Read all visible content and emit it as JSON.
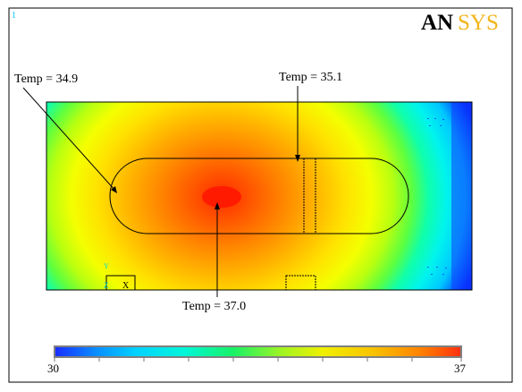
{
  "window": {
    "number": "1"
  },
  "logo": {
    "text": "ANSYS",
    "colors": {
      "an": "#000000",
      "sys": "#f2b51a"
    }
  },
  "annotations": [
    {
      "label": "Temp = 34.9"
    },
    {
      "label": "Temp = 35.1"
    },
    {
      "label": "Temp = 37.0"
    }
  ],
  "triad": {
    "y_label": "Y",
    "z_label": "Z",
    "x_label": "X"
  },
  "legend": {
    "min_label": "30",
    "max_label": "37",
    "min_value": 30,
    "max_value": 37,
    "colors": [
      "#0b16ff",
      "#00c8ff",
      "#00f2d0",
      "#16f260",
      "#8ff22a",
      "#e6f200",
      "#f7d800",
      "#ffa800",
      "#ff6800",
      "#ff3010"
    ]
  },
  "contour_colors": {
    "cold": "#1636ff",
    "cyan": "#00e7f0",
    "aqua": "#00ffcf",
    "green": "#22ff62",
    "lime": "#9aff1e",
    "yellow": "#ffff00",
    "gold": "#ffd400",
    "orange": "#ffa000",
    "deep_orange": "#ff6400",
    "red": "#ff2a00"
  }
}
